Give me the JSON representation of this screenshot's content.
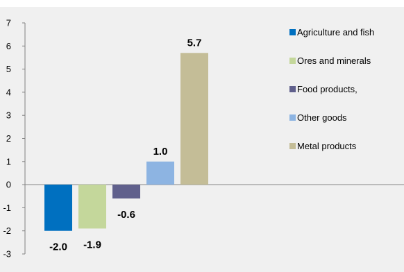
{
  "chart_data": {
    "type": "bar",
    "categories": [
      "Agriculture and fish",
      "Ores and minerals",
      "Food products,",
      "Other  goods",
      "Metal products"
    ],
    "values": [
      -2.0,
      -1.9,
      -0.6,
      1.0,
      5.7
    ],
    "data_labels": [
      "-2.0",
      "-1.9",
      "-0.6",
      "1.0",
      "5.7"
    ],
    "colors": [
      "#0070c0",
      "#c4d79b",
      "#60608c",
      "#8db4e2",
      "#c4bd97"
    ],
    "title": "",
    "xlabel": "",
    "ylabel": "",
    "ylim": [
      -3,
      7
    ],
    "yticks": [
      "-3",
      "-2",
      "-1",
      "0",
      "1",
      "2",
      "3",
      "4",
      "5",
      "6",
      "7"
    ],
    "grid": false,
    "legend_position": "right",
    "background": "#f0f0f0"
  }
}
